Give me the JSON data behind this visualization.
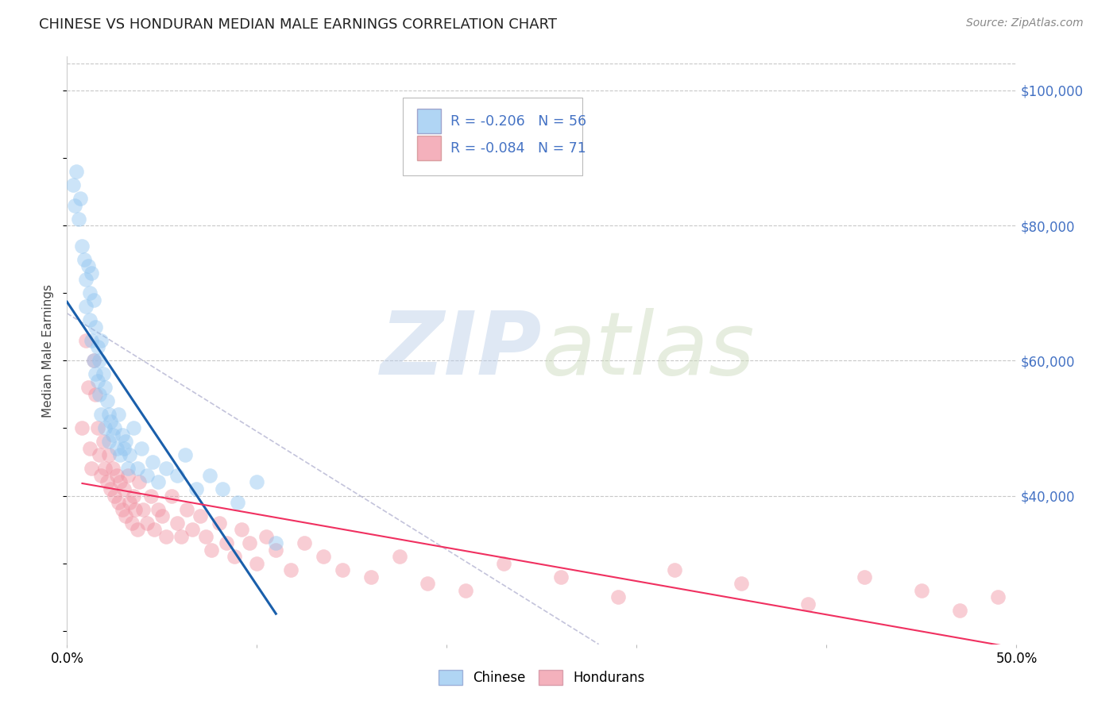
{
  "title": "CHINESE VS HONDURAN MEDIAN MALE EARNINGS CORRELATION CHART",
  "source": "Source: ZipAtlas.com",
  "ylabel": "Median Male Earnings",
  "xmin": 0.0,
  "xmax": 0.5,
  "ymin": 18000,
  "ymax": 105000,
  "yticks": [
    40000,
    60000,
    80000,
    100000
  ],
  "ytick_labels": [
    "$40,000",
    "$60,000",
    "$80,000",
    "$100,000"
  ],
  "xticks": [
    0.0,
    0.1,
    0.2,
    0.3,
    0.4,
    0.5
  ],
  "xtick_labels": [
    "0.0%",
    "",
    "",
    "",
    "",
    "50.0%"
  ],
  "chinese_R": -0.206,
  "chinese_N": 56,
  "honduran_R": -0.084,
  "honduran_N": 71,
  "chinese_color": "#8FC4F0",
  "honduran_color": "#F090A0",
  "chinese_line_color": "#1A5FAB",
  "honduran_line_color": "#F03060",
  "grid_color": "#C8C8C8",
  "background_color": "#FFFFFF",
  "chinese_x": [
    0.003,
    0.004,
    0.005,
    0.006,
    0.007,
    0.008,
    0.009,
    0.01,
    0.01,
    0.011,
    0.012,
    0.012,
    0.013,
    0.013,
    0.014,
    0.014,
    0.015,
    0.015,
    0.016,
    0.016,
    0.017,
    0.017,
    0.018,
    0.018,
    0.019,
    0.02,
    0.02,
    0.021,
    0.022,
    0.022,
    0.023,
    0.024,
    0.025,
    0.026,
    0.027,
    0.028,
    0.029,
    0.03,
    0.031,
    0.032,
    0.033,
    0.035,
    0.037,
    0.039,
    0.042,
    0.045,
    0.048,
    0.052,
    0.058,
    0.062,
    0.068,
    0.075,
    0.082,
    0.09,
    0.1,
    0.11
  ],
  "chinese_y": [
    86000,
    83000,
    88000,
    81000,
    84000,
    77000,
    75000,
    72000,
    68000,
    74000,
    70000,
    66000,
    73000,
    63000,
    69000,
    60000,
    65000,
    58000,
    62000,
    57000,
    60000,
    55000,
    63000,
    52000,
    58000,
    56000,
    50000,
    54000,
    52000,
    48000,
    51000,
    49000,
    50000,
    47000,
    52000,
    46000,
    49000,
    47000,
    48000,
    44000,
    46000,
    50000,
    44000,
    47000,
    43000,
    45000,
    42000,
    44000,
    43000,
    46000,
    41000,
    43000,
    41000,
    39000,
    42000,
    33000
  ],
  "honduran_x": [
    0.008,
    0.01,
    0.011,
    0.012,
    0.013,
    0.014,
    0.015,
    0.016,
    0.017,
    0.018,
    0.019,
    0.02,
    0.021,
    0.022,
    0.023,
    0.024,
    0.025,
    0.026,
    0.027,
    0.028,
    0.029,
    0.03,
    0.031,
    0.032,
    0.033,
    0.034,
    0.035,
    0.036,
    0.037,
    0.038,
    0.04,
    0.042,
    0.044,
    0.046,
    0.048,
    0.05,
    0.052,
    0.055,
    0.058,
    0.06,
    0.063,
    0.066,
    0.07,
    0.073,
    0.076,
    0.08,
    0.084,
    0.088,
    0.092,
    0.096,
    0.1,
    0.105,
    0.11,
    0.118,
    0.125,
    0.135,
    0.145,
    0.16,
    0.175,
    0.19,
    0.21,
    0.23,
    0.26,
    0.29,
    0.32,
    0.355,
    0.39,
    0.42,
    0.45,
    0.47,
    0.49
  ],
  "honduran_y": [
    50000,
    63000,
    56000,
    47000,
    44000,
    60000,
    55000,
    50000,
    46000,
    43000,
    48000,
    44000,
    42000,
    46000,
    41000,
    44000,
    40000,
    43000,
    39000,
    42000,
    38000,
    41000,
    37000,
    43000,
    39000,
    36000,
    40000,
    38000,
    35000,
    42000,
    38000,
    36000,
    40000,
    35000,
    38000,
    37000,
    34000,
    40000,
    36000,
    34000,
    38000,
    35000,
    37000,
    34000,
    32000,
    36000,
    33000,
    31000,
    35000,
    33000,
    30000,
    34000,
    32000,
    29000,
    33000,
    31000,
    29000,
    28000,
    31000,
    27000,
    26000,
    30000,
    28000,
    25000,
    29000,
    27000,
    24000,
    28000,
    26000,
    23000,
    25000
  ],
  "dash_line_x": [
    0.0,
    0.28
  ],
  "dash_line_y": [
    67000,
    18000
  ]
}
